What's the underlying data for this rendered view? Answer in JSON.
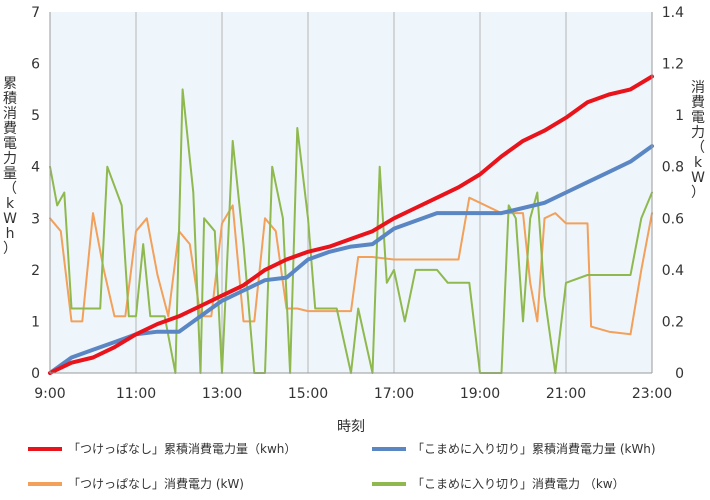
{
  "chart_data": {
    "type": "line",
    "title": "",
    "xlabel": "時刻",
    "ylabel_left": "累積消費電力量（kWh）",
    "ylabel_right": "消費電力（kW）",
    "x_range": [
      "9:00",
      "23:00"
    ],
    "x_ticks": [
      "9:00",
      "11:00",
      "13:00",
      "15:00",
      "17:00",
      "19:00",
      "21:00",
      "23:00"
    ],
    "y_left": {
      "min": 0,
      "max": 7,
      "ticks": [
        "0",
        "1",
        "2",
        "3",
        "4",
        "5",
        "6",
        "7"
      ]
    },
    "y_right": {
      "min": 0,
      "max": 1.4,
      "ticks": [
        "0",
        "0.2",
        "0.4",
        "0.6",
        "0.8",
        "1",
        "1.2",
        "1.4"
      ]
    },
    "grid": "vertical",
    "plot_background": "#eef6fb",
    "legend_position": "bottom",
    "series": [
      {
        "name": "「つけっぱなし」累積消費電力量（kwh）",
        "axis": "left",
        "color": "#e8131b",
        "points": [
          [
            "9:00",
            0
          ],
          [
            "9:30",
            0.2
          ],
          [
            "10:00",
            0.3
          ],
          [
            "10:30",
            0.5
          ],
          [
            "11:00",
            0.75
          ],
          [
            "11:30",
            0.95
          ],
          [
            "12:00",
            1.1
          ],
          [
            "12:30",
            1.3
          ],
          [
            "13:00",
            1.5
          ],
          [
            "13:30",
            1.7
          ],
          [
            "14:00",
            2.0
          ],
          [
            "14:30",
            2.2
          ],
          [
            "15:00",
            2.35
          ],
          [
            "15:30",
            2.45
          ],
          [
            "16:00",
            2.6
          ],
          [
            "16:30",
            2.75
          ],
          [
            "17:00",
            3.0
          ],
          [
            "17:30",
            3.2
          ],
          [
            "18:00",
            3.4
          ],
          [
            "18:30",
            3.6
          ],
          [
            "19:00",
            3.85
          ],
          [
            "19:30",
            4.2
          ],
          [
            "20:00",
            4.5
          ],
          [
            "20:30",
            4.7
          ],
          [
            "21:00",
            4.95
          ],
          [
            "21:30",
            5.25
          ],
          [
            "22:00",
            5.4
          ],
          [
            "22:30",
            5.5
          ],
          [
            "23:00",
            5.75
          ]
        ]
      },
      {
        "name": "「こまめに入り切り」累積消費電力量 (kWh)",
        "axis": "left",
        "color": "#5b86c4",
        "points": [
          [
            "9:00",
            0
          ],
          [
            "9:30",
            0.3
          ],
          [
            "10:00",
            0.45
          ],
          [
            "10:30",
            0.6
          ],
          [
            "11:00",
            0.75
          ],
          [
            "11:30",
            0.8
          ],
          [
            "12:00",
            0.8
          ],
          [
            "12:30",
            1.1
          ],
          [
            "13:00",
            1.4
          ],
          [
            "13:30",
            1.6
          ],
          [
            "14:00",
            1.8
          ],
          [
            "14:30",
            1.85
          ],
          [
            "15:00",
            2.2
          ],
          [
            "15:30",
            2.35
          ],
          [
            "16:00",
            2.45
          ],
          [
            "16:30",
            2.5
          ],
          [
            "17:00",
            2.8
          ],
          [
            "17:30",
            2.95
          ],
          [
            "18:00",
            3.1
          ],
          [
            "18:30",
            3.1
          ],
          [
            "19:00",
            3.1
          ],
          [
            "19:30",
            3.1
          ],
          [
            "20:00",
            3.2
          ],
          [
            "20:30",
            3.3
          ],
          [
            "21:00",
            3.5
          ],
          [
            "21:30",
            3.7
          ],
          [
            "22:00",
            3.9
          ],
          [
            "22:30",
            4.1
          ],
          [
            "23:00",
            4.4
          ]
        ]
      },
      {
        "name": "「つけっぱなし」消費電力 (kW)",
        "axis": "right",
        "color": "#f2a05a",
        "points": [
          [
            "9:00",
            0.6
          ],
          [
            "9:15",
            0.55
          ],
          [
            "9:30",
            0.2
          ],
          [
            "9:45",
            0.2
          ],
          [
            "10:00",
            0.62
          ],
          [
            "10:15",
            0.4
          ],
          [
            "10:30",
            0.22
          ],
          [
            "10:45",
            0.22
          ],
          [
            "11:00",
            0.55
          ],
          [
            "11:15",
            0.6
          ],
          [
            "11:30",
            0.38
          ],
          [
            "11:45",
            0.22
          ],
          [
            "12:00",
            0.55
          ],
          [
            "12:15",
            0.5
          ],
          [
            "12:30",
            0.22
          ],
          [
            "12:45",
            0.22
          ],
          [
            "13:00",
            0.58
          ],
          [
            "13:15",
            0.65
          ],
          [
            "13:30",
            0.2
          ],
          [
            "13:45",
            0.2
          ],
          [
            "14:00",
            0.6
          ],
          [
            "14:15",
            0.55
          ],
          [
            "14:30",
            0.25
          ],
          [
            "14:45",
            0.25
          ],
          [
            "15:00",
            0.24
          ],
          [
            "15:30",
            0.24
          ],
          [
            "16:00",
            0.24
          ],
          [
            "16:10",
            0.45
          ],
          [
            "16:30",
            0.45
          ],
          [
            "17:00",
            0.44
          ],
          [
            "17:30",
            0.44
          ],
          [
            "18:00",
            0.44
          ],
          [
            "18:30",
            0.44
          ],
          [
            "18:45",
            0.68
          ],
          [
            "19:00",
            0.66
          ],
          [
            "19:30",
            0.62
          ],
          [
            "20:00",
            0.62
          ],
          [
            "20:10",
            0.35
          ],
          [
            "20:20",
            0.2
          ],
          [
            "20:30",
            0.6
          ],
          [
            "20:45",
            0.62
          ],
          [
            "21:00",
            0.58
          ],
          [
            "21:15",
            0.58
          ],
          [
            "21:30",
            0.58
          ],
          [
            "21:35",
            0.18
          ],
          [
            "22:00",
            0.16
          ],
          [
            "22:30",
            0.15
          ],
          [
            "22:45",
            0.4
          ],
          [
            "23:00",
            0.62
          ]
        ]
      },
      {
        "name": "「こまめに入り切り」消費電力 （kw）",
        "axis": "right",
        "color": "#8fb94e",
        "points": [
          [
            "9:00",
            0.8
          ],
          [
            "9:10",
            0.65
          ],
          [
            "9:20",
            0.7
          ],
          [
            "9:30",
            0.25
          ],
          [
            "9:50",
            0.25
          ],
          [
            "10:10",
            0.25
          ],
          [
            "10:20",
            0.8
          ],
          [
            "10:40",
            0.65
          ],
          [
            "10:50",
            0.22
          ],
          [
            "11:00",
            0.22
          ],
          [
            "11:10",
            0.5
          ],
          [
            "11:20",
            0.22
          ],
          [
            "11:40",
            0.22
          ],
          [
            "11:55",
            0.0
          ],
          [
            "12:05",
            1.1
          ],
          [
            "12:20",
            0.7
          ],
          [
            "12:30",
            0.0
          ],
          [
            "12:35",
            0.6
          ],
          [
            "12:50",
            0.55
          ],
          [
            "13:00",
            0.0
          ],
          [
            "13:15",
            0.9
          ],
          [
            "13:30",
            0.5
          ],
          [
            "13:45",
            0.0
          ],
          [
            "14:00",
            0.0
          ],
          [
            "14:10",
            0.8
          ],
          [
            "14:25",
            0.6
          ],
          [
            "14:35",
            0.0
          ],
          [
            "14:45",
            0.95
          ],
          [
            "15:00",
            0.6
          ],
          [
            "15:10",
            0.25
          ],
          [
            "15:40",
            0.25
          ],
          [
            "16:00",
            0.0
          ],
          [
            "16:10",
            0.25
          ],
          [
            "16:30",
            0.0
          ],
          [
            "16:40",
            0.8
          ],
          [
            "16:50",
            0.35
          ],
          [
            "17:00",
            0.4
          ],
          [
            "17:15",
            0.2
          ],
          [
            "17:30",
            0.4
          ],
          [
            "18:00",
            0.4
          ],
          [
            "18:15",
            0.35
          ],
          [
            "18:45",
            0.35
          ],
          [
            "19:00",
            0.0
          ],
          [
            "19:30",
            0.0
          ],
          [
            "19:40",
            0.65
          ],
          [
            "19:50",
            0.6
          ],
          [
            "20:00",
            0.2
          ],
          [
            "20:10",
            0.6
          ],
          [
            "20:20",
            0.7
          ],
          [
            "20:30",
            0.3
          ],
          [
            "20:45",
            0.0
          ],
          [
            "21:00",
            0.35
          ],
          [
            "21:30",
            0.38
          ],
          [
            "22:00",
            0.38
          ],
          [
            "22:30",
            0.38
          ],
          [
            "22:45",
            0.6
          ],
          [
            "23:00",
            0.7
          ]
        ]
      }
    ]
  }
}
